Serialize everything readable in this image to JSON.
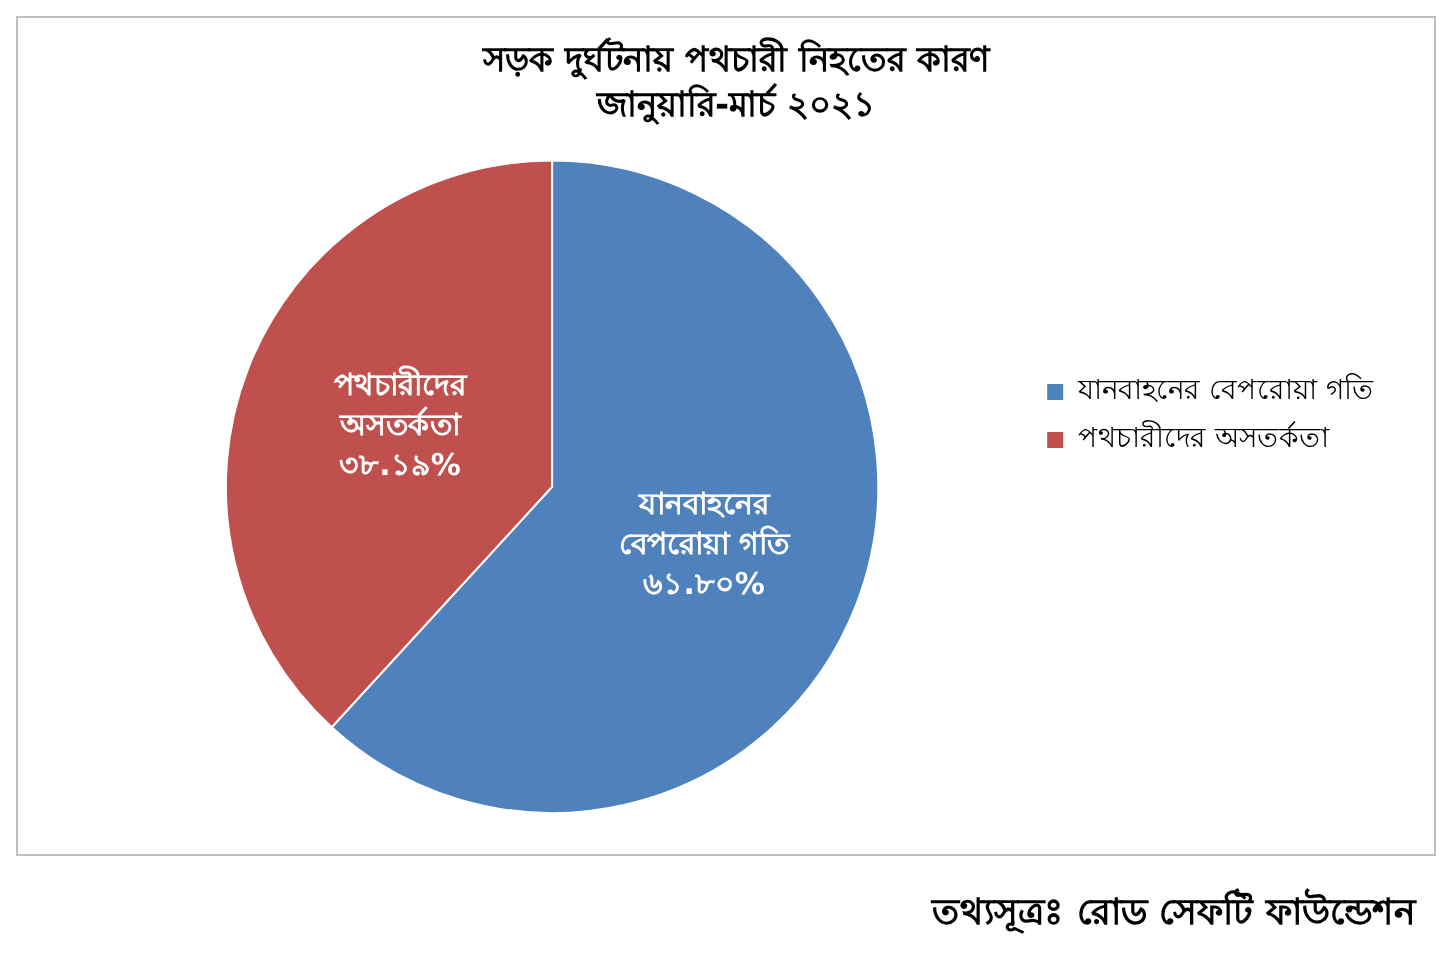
{
  "chart_data": {
    "type": "pie",
    "title": "সড়ক দুর্ঘটনায় পথচারী নিহতের কারণ",
    "subtitle": "জানুয়ারি-মার্চ ২০২১",
    "categories": [
      "যানবাহনের বেপরোয়া গতি",
      "পথচারীদের অসতর্কতা"
    ],
    "values": [
      61.8,
      38.19
    ],
    "value_labels": [
      "৬১.৮০%",
      "৩৮.১৯%"
    ],
    "colors": [
      "#4f81bd",
      "#c0504d"
    ],
    "legend": "right",
    "annotations": [
      "তথ্যসূত্রঃ রোড সেফটি ফাউন্ডেশন"
    ]
  }
}
